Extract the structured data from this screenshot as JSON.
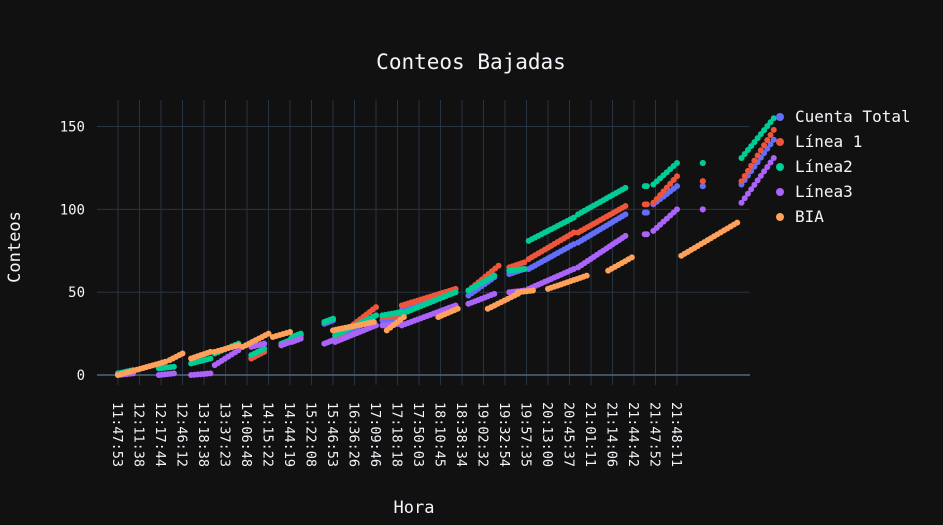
{
  "chart_data": {
    "type": "scatter",
    "title": "Conteos Bajadas",
    "xlabel": "Hora",
    "ylabel": "Conteos",
    "ylim": [
      -6,
      166
    ],
    "yticks": [
      0,
      50,
      100,
      150
    ],
    "grid": true,
    "legend_position": "right",
    "background": "#111111",
    "grid_color": "#283442",
    "x_tick_labels": [
      "11:47:53",
      "12:11:38",
      "12:17:44",
      "12:46:12",
      "13:18:38",
      "13:37:23",
      "14:06:48",
      "14:15:22",
      "14:44:19",
      "15:22:08",
      "15:46:53",
      "16:36:26",
      "17:09:46",
      "17:18:18",
      "17:50:03",
      "18:10:45",
      "18:38:34",
      "19:02:32",
      "19:32:54",
      "19:57:35",
      "20:13:00",
      "20:45:37",
      "21:01:11",
      "21:14:06",
      "21:44:42",
      "21:47:52",
      "21:48:11"
    ],
    "series": [
      {
        "name": "Cuenta Total",
        "color": "#636efa",
        "segments": [
          [
            0,
            0.7,
            0,
            2
          ],
          [
            6.2,
            6.7,
            10,
            14
          ],
          [
            7.6,
            7.95,
            18,
            20
          ],
          [
            8.05,
            8.5,
            22,
            24
          ],
          [
            9.6,
            10,
            31,
            33
          ],
          [
            10.1,
            12,
            20,
            36
          ],
          [
            12.3,
            13.15,
            33,
            34
          ],
          [
            13.2,
            15.7,
            39,
            50
          ],
          [
            16.3,
            17.5,
            48,
            59
          ],
          [
            18.2,
            18.9,
            61,
            64
          ],
          [
            19.1,
            21.2,
            64,
            79
          ],
          [
            21.4,
            23.6,
            80,
            97
          ],
          [
            24.5,
            24.6,
            98,
            98
          ],
          [
            24.9,
            26,
            103,
            114
          ],
          [
            27.2,
            27.2,
            114,
            114
          ],
          [
            29,
            30.5,
            115,
            142
          ]
        ]
      },
      {
        "name": "Línea 1",
        "color": "#ef553b",
        "segments": [
          [
            0,
            0.7,
            1,
            2
          ],
          [
            6.2,
            6.8,
            10,
            14
          ],
          [
            7.6,
            8,
            18,
            20
          ],
          [
            8.1,
            8.5,
            23,
            24
          ],
          [
            9.6,
            10,
            32,
            34
          ],
          [
            10.1,
            12,
            22,
            41
          ],
          [
            12.3,
            13.15,
            35,
            36
          ],
          [
            13.2,
            15.7,
            42,
            52
          ],
          [
            16.3,
            17.7,
            51,
            66
          ],
          [
            18.2,
            18.9,
            65,
            68
          ],
          [
            19.1,
            21.2,
            70,
            86
          ],
          [
            21.4,
            23.6,
            86,
            102
          ],
          [
            24.5,
            24.6,
            103,
            103
          ],
          [
            24.9,
            26,
            104,
            120
          ],
          [
            27.2,
            27.2,
            117,
            117
          ],
          [
            29,
            30.5,
            117,
            148
          ]
        ]
      },
      {
        "name": "Línea2",
        "color": "#00cc96",
        "segments": [
          [
            0,
            0.7,
            1,
            3
          ],
          [
            1.9,
            2.6,
            4,
            5
          ],
          [
            3.4,
            4.3,
            7,
            10
          ],
          [
            4.5,
            5.6,
            13,
            19
          ],
          [
            6.2,
            6.8,
            12,
            16
          ],
          [
            7.6,
            8,
            19,
            21
          ],
          [
            8.1,
            8.5,
            23,
            25
          ],
          [
            9.6,
            10,
            32,
            34
          ],
          [
            10.1,
            12,
            24,
            36
          ],
          [
            12.3,
            13.15,
            36,
            38
          ],
          [
            13.2,
            15.7,
            37,
            50
          ],
          [
            16.3,
            17.5,
            51,
            60
          ],
          [
            18.2,
            18.9,
            63,
            64
          ],
          [
            19.1,
            21.2,
            81,
            95
          ],
          [
            21.4,
            23.6,
            97,
            113
          ],
          [
            24.5,
            24.6,
            114,
            114
          ],
          [
            24.9,
            26,
            115,
            128
          ],
          [
            27.2,
            27.2,
            128,
            128
          ],
          [
            29,
            30.5,
            131,
            155
          ]
        ]
      },
      {
        "name": "Línea3",
        "color": "#ab63fa",
        "segments": [
          [
            0,
            0.7,
            0,
            1
          ],
          [
            1.9,
            2.6,
            0,
            1
          ],
          [
            3.4,
            4.3,
            0,
            1
          ],
          [
            4.5,
            5.6,
            6,
            15
          ],
          [
            6.2,
            6.8,
            17,
            19
          ],
          [
            7.6,
            8,
            18,
            20
          ],
          [
            8.1,
            8.5,
            20,
            22
          ],
          [
            9.6,
            10,
            19,
            21
          ],
          [
            10.1,
            12,
            20,
            30
          ],
          [
            12.3,
            13.15,
            30,
            31
          ],
          [
            13.2,
            15.7,
            30,
            42
          ],
          [
            16.3,
            17.5,
            43,
            49
          ],
          [
            18.2,
            18.9,
            50,
            51
          ],
          [
            19.1,
            21.2,
            52,
            64
          ],
          [
            21.4,
            23.6,
            65,
            84
          ],
          [
            24.5,
            24.6,
            85,
            85
          ],
          [
            24.9,
            26,
            87,
            100
          ],
          [
            27.2,
            27.2,
            100,
            100
          ],
          [
            29,
            30.5,
            104,
            131
          ]
        ]
      },
      {
        "name": "BIA",
        "color": "#ffa15a",
        "segments": [
          [
            0,
            2.2,
            0,
            8
          ],
          [
            2.4,
            3,
            9,
            13
          ],
          [
            3.4,
            4.3,
            10,
            14
          ],
          [
            4.5,
            5.6,
            14,
            18
          ],
          [
            5.8,
            7,
            17,
            25
          ],
          [
            7.2,
            8,
            23,
            26
          ],
          [
            10,
            11.9,
            27,
            32
          ],
          [
            12.5,
            13.3,
            27,
            35
          ],
          [
            14.9,
            15.8,
            35,
            40
          ],
          [
            17.2,
            18.6,
            40,
            49
          ],
          [
            18.6,
            19.3,
            50,
            51
          ],
          [
            20,
            21.8,
            52,
            60
          ],
          [
            22.8,
            23.9,
            63,
            71
          ],
          [
            26.2,
            28.8,
            72,
            92
          ]
        ]
      }
    ]
  }
}
